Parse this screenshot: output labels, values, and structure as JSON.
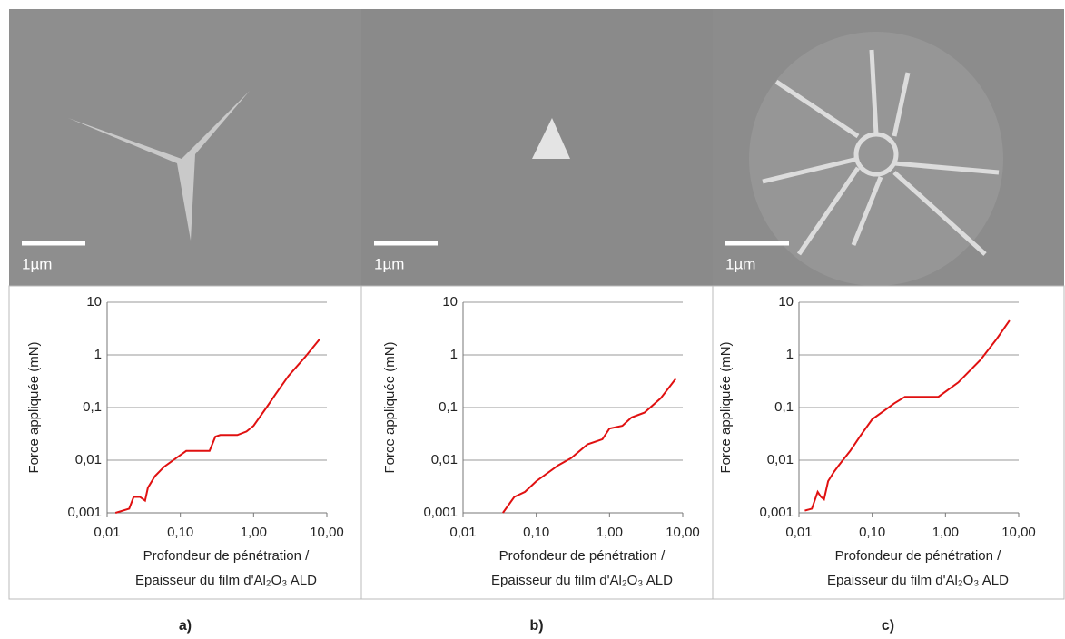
{
  "chart_data": [
    {
      "type": "line",
      "panel_label": "a)",
      "scale_bar_label": "1µm",
      "ylabel": "Force appliquée (mN)",
      "xlabel": [
        "Profondeur de pénétration /",
        "Epaisseur du film d'Al₂O₃ ALD"
      ],
      "log_x": true,
      "log_y": true,
      "grid": true,
      "color": "#e01010",
      "xlim": [
        0.01,
        10
      ],
      "ylim": [
        0.001,
        10
      ],
      "xticks": [
        {
          "value": 0.01,
          "label": "0,01"
        },
        {
          "value": 0.1,
          "label": "0,10"
        },
        {
          "value": 1,
          "label": "1,00"
        },
        {
          "value": 10,
          "label": "10,00"
        }
      ],
      "yticks": [
        {
          "value": 0.001,
          "label": "0,001"
        },
        {
          "value": 0.01,
          "label": "0,01"
        },
        {
          "value": 0.1,
          "label": "0,1"
        },
        1,
        10
      ],
      "x": [
        0.013,
        0.02,
        0.023,
        0.028,
        0.033,
        0.036,
        0.045,
        0.06,
        0.08,
        0.12,
        0.25,
        0.3,
        0.35,
        0.6,
        0.8,
        1.0,
        1.5,
        2,
        3,
        5,
        8
      ],
      "values": [
        0.001,
        0.0012,
        0.002,
        0.002,
        0.0017,
        0.003,
        0.005,
        0.0075,
        0.01,
        0.015,
        0.015,
        0.028,
        0.03,
        0.03,
        0.035,
        0.045,
        0.1,
        0.18,
        0.4,
        0.9,
        2
      ]
    },
    {
      "type": "line",
      "panel_label": "b)",
      "scale_bar_label": "1µm",
      "ylabel": "Force appliquée (mN)",
      "xlabel": [
        "Profondeur de pénétration /",
        "Epaisseur du film d'Al₂O₃ ALD"
      ],
      "log_x": true,
      "log_y": true,
      "grid": true,
      "color": "#e01010",
      "xlim": [
        0.01,
        10
      ],
      "ylim": [
        0.001,
        10
      ],
      "xticks": [
        {
          "value": 0.01,
          "label": "0,01"
        },
        {
          "value": 0.1,
          "label": "0,10"
        },
        {
          "value": 1,
          "label": "1,00"
        },
        {
          "value": 10,
          "label": "10,00"
        }
      ],
      "yticks": [
        {
          "value": 0.001,
          "label": "0,001"
        },
        {
          "value": 0.01,
          "label": "0,01"
        },
        {
          "value": 0.1,
          "label": "0,1"
        },
        1,
        10
      ],
      "x": [
        0.035,
        0.05,
        0.07,
        0.1,
        0.2,
        0.3,
        0.5,
        0.8,
        1.0,
        1.5,
        2,
        3,
        5,
        8
      ],
      "values": [
        0.001,
        0.002,
        0.0025,
        0.004,
        0.008,
        0.011,
        0.02,
        0.025,
        0.04,
        0.045,
        0.065,
        0.08,
        0.15,
        0.35
      ]
    },
    {
      "type": "line",
      "panel_label": "c)",
      "scale_bar_label": "1µm",
      "ylabel": "Force appliquée (mN)",
      "xlabel": [
        "Profondeur de pénétration /",
        "Epaisseur du film d'Al₂O₃ ALD"
      ],
      "log_x": true,
      "log_y": true,
      "grid": true,
      "color": "#e01010",
      "xlim": [
        0.01,
        10
      ],
      "ylim": [
        0.001,
        10
      ],
      "xticks": [
        {
          "value": 0.01,
          "label": "0,01"
        },
        {
          "value": 0.1,
          "label": "0,10"
        },
        {
          "value": 1,
          "label": "1,00"
        },
        {
          "value": 10,
          "label": "10,00"
        }
      ],
      "yticks": [
        {
          "value": 0.001,
          "label": "0,001"
        },
        {
          "value": 0.01,
          "label": "0,01"
        },
        {
          "value": 0.1,
          "label": "0,1"
        },
        1,
        10
      ],
      "x": [
        0.012,
        0.015,
        0.018,
        0.02,
        0.022,
        0.025,
        0.03,
        0.035,
        0.05,
        0.07,
        0.1,
        0.15,
        0.2,
        0.28,
        0.8,
        1.5,
        3,
        5,
        7.5
      ],
      "values": [
        0.0011,
        0.0012,
        0.0025,
        0.002,
        0.0018,
        0.004,
        0.006,
        0.008,
        0.015,
        0.03,
        0.06,
        0.09,
        0.12,
        0.16,
        0.16,
        0.3,
        0.8,
        2,
        4.5
      ]
    }
  ]
}
